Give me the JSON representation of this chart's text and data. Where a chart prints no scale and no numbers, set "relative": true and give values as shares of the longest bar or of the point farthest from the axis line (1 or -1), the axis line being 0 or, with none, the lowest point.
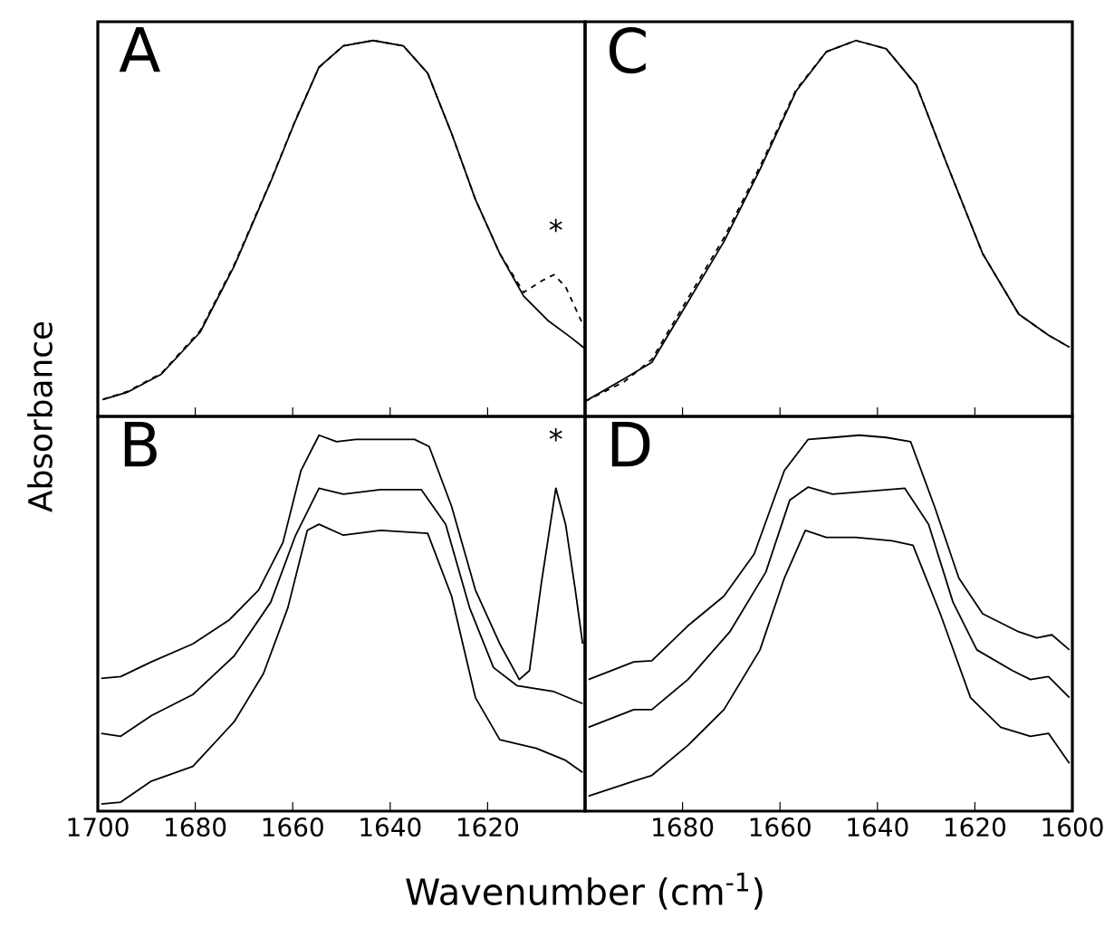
{
  "chart_data": [
    {
      "type": "line",
      "title": "A",
      "ylabel": "Absorbance",
      "relative": true,
      "tick_labels": false,
      "xlim": [
        1700,
        1600
      ],
      "xticks": [
        1700,
        1680,
        1660,
        1640,
        1620
      ],
      "annotations": [
        "*"
      ],
      "series": [
        {
          "color": "#000000",
          "line_style": "solid",
          "x": [
            1699,
            1694,
            1687,
            1679,
            1672,
            1664.5,
            1659.5,
            1654.6,
            1649.6,
            1643.5,
            1637.3,
            1632.3,
            1627.4,
            1622.5,
            1617.5,
            1612.6,
            1607.7,
            1602.7,
            1600
          ],
          "values": [
            0.045,
            0.064,
            0.112,
            0.224,
            0.4,
            0.625,
            0.785,
            0.929,
            0.986,
            1.0,
            0.986,
            0.913,
            0.753,
            0.577,
            0.433,
            0.32,
            0.256,
            0.208,
            0.18
          ]
        },
        {
          "color": "#000000",
          "line_style": "dashed",
          "x": [
            1699,
            1694,
            1687,
            1679,
            1672,
            1664.5,
            1659.5,
            1654.6,
            1649.6,
            1643.5,
            1637.3,
            1632.3,
            1627.4,
            1622.5,
            1617.5,
            1612.6,
            1609,
            1606.4,
            1604,
            1600
          ],
          "values": [
            0.045,
            0.066,
            0.114,
            0.228,
            0.404,
            0.627,
            0.787,
            0.929,
            0.986,
            1.0,
            0.986,
            0.913,
            0.753,
            0.577,
            0.433,
            0.33,
            0.36,
            0.377,
            0.345,
            0.232
          ]
        }
      ]
    },
    {
      "type": "line",
      "title": "C",
      "relative": true,
      "tick_labels": false,
      "xlim": [
        1700,
        1600
      ],
      "xticks": [
        1680,
        1660,
        1640,
        1620
      ],
      "series": [
        {
          "color": "#000000",
          "line_style": "solid",
          "x": [
            1700,
            1692,
            1686.3,
            1678.9,
            1671.5,
            1664.1,
            1656.7,
            1650.5,
            1644.4,
            1638.2,
            1632,
            1625.8,
            1618.4,
            1611,
            1604.9,
            1600.6
          ],
          "values": [
            0.04,
            0.1,
            0.144,
            0.304,
            0.465,
            0.657,
            0.865,
            0.97,
            1.0,
            0.978,
            0.881,
            0.673,
            0.433,
            0.272,
            0.216,
            0.184
          ]
        },
        {
          "color": "#000000",
          "line_style": "dashed",
          "x": [
            1700,
            1692,
            1686.3,
            1678.9,
            1671.5,
            1664.1,
            1656.7,
            1650.5,
            1644.4,
            1638.2,
            1632,
            1625.8,
            1618.4,
            1611,
            1604.9,
            1600.6
          ],
          "values": [
            0.04,
            0.092,
            0.152,
            0.314,
            0.475,
            0.665,
            0.869,
            0.97,
            1.0,
            0.978,
            0.881,
            0.673,
            0.433,
            0.272,
            0.216,
            0.184
          ]
        }
      ]
    },
    {
      "type": "line",
      "title": "B",
      "xlabel": "Wavenumber  (cm$^{-1}$)",
      "relative": true,
      "tick_labels": "x",
      "xlim": [
        1700,
        1600
      ],
      "xticks": [
        1700,
        1680,
        1660,
        1640,
        1620
      ],
      "annotations": [
        "*"
      ],
      "series": [
        {
          "color": "#000000",
          "line_style": "solid",
          "x": [
            1699.3,
            1695.3,
            1689,
            1680.5,
            1673,
            1667,
            1662,
            1658.3,
            1654.6,
            1651,
            1647,
            1642,
            1635,
            1632,
            1627.4,
            1622.5,
            1617.5,
            1613.5,
            1611.4,
            1609,
            1606,
            1604,
            1602,
            1600.5
          ],
          "values": [
            0.353,
            0.358,
            0.397,
            0.445,
            0.509,
            0.588,
            0.715,
            0.906,
            1.0,
            0.983,
            0.989,
            0.989,
            0.989,
            0.97,
            0.811,
            0.588,
            0.445,
            0.35,
            0.374,
            0.604,
            0.859,
            0.763,
            0.588,
            0.445
          ]
        },
        {
          "color": "#000000",
          "line_style": "solid",
          "x": [
            1699.3,
            1695.3,
            1689,
            1680.5,
            1672,
            1664.5,
            1659.5,
            1654.6,
            1649.6,
            1642,
            1633.6,
            1628.6,
            1623.7,
            1618.8,
            1614,
            1606.4,
            1600.5
          ],
          "values": [
            0.207,
            0.199,
            0.254,
            0.31,
            0.413,
            0.556,
            0.731,
            0.859,
            0.843,
            0.855,
            0.855,
            0.763,
            0.541,
            0.382,
            0.334,
            0.318,
            0.286
          ]
        },
        {
          "color": "#000000",
          "line_style": "solid",
          "x": [
            1699.3,
            1695.3,
            1689,
            1680.5,
            1672,
            1666,
            1661,
            1657,
            1654.6,
            1649.6,
            1642,
            1632.3,
            1627.4,
            1622.5,
            1617.5,
            1610,
            1604,
            1600.5
          ],
          "values": [
            0.019,
            0.024,
            0.08,
            0.119,
            0.238,
            0.366,
            0.541,
            0.747,
            0.763,
            0.734,
            0.747,
            0.739,
            0.572,
            0.302,
            0.19,
            0.167,
            0.135,
            0.103
          ]
        }
      ]
    },
    {
      "type": "line",
      "title": "D",
      "relative": true,
      "tick_labels": "x",
      "xlim": [
        1700,
        1600
      ],
      "xticks": [
        1680,
        1660,
        1640,
        1620,
        1600
      ],
      "series": [
        {
          "color": "#000000",
          "line_style": "solid",
          "x": [
            1699.3,
            1690,
            1686.3,
            1678.9,
            1671.5,
            1665.3,
            1659.1,
            1654.2,
            1649.2,
            1643.7,
            1638.2,
            1633.2,
            1628.3,
            1623.3,
            1618.4,
            1611,
            1607.3,
            1604.2,
            1600.6
          ],
          "values": [
            0.35,
            0.397,
            0.4,
            0.493,
            0.572,
            0.684,
            0.906,
            0.989,
            0.994,
            1.0,
            0.994,
            0.983,
            0.811,
            0.62,
            0.525,
            0.477,
            0.461,
            0.469,
            0.429
          ]
        },
        {
          "color": "#000000",
          "line_style": "solid",
          "x": [
            1699.3,
            1690,
            1686.3,
            1678.9,
            1670.3,
            1662.9,
            1658,
            1654.2,
            1649.2,
            1641.8,
            1634.4,
            1629.5,
            1624.5,
            1619.6,
            1612.3,
            1608.6,
            1604.9,
            1600.6
          ],
          "values": [
            0.223,
            0.27,
            0.27,
            0.35,
            0.477,
            0.636,
            0.827,
            0.862,
            0.843,
            0.851,
            0.859,
            0.763,
            0.556,
            0.429,
            0.374,
            0.35,
            0.358,
            0.302
          ]
        },
        {
          "color": "#000000",
          "line_style": "solid",
          "x": [
            1699.3,
            1690,
            1686.3,
            1678.9,
            1671.5,
            1664.1,
            1659.1,
            1654.8,
            1650.5,
            1644.4,
            1637,
            1632.7,
            1627.1,
            1620.9,
            1614.7,
            1608.6,
            1604.9,
            1600.6
          ],
          "values": [
            0.04,
            0.08,
            0.095,
            0.175,
            0.27,
            0.429,
            0.62,
            0.747,
            0.728,
            0.728,
            0.719,
            0.707,
            0.525,
            0.302,
            0.223,
            0.199,
            0.207,
            0.127
          ]
        }
      ]
    }
  ]
}
